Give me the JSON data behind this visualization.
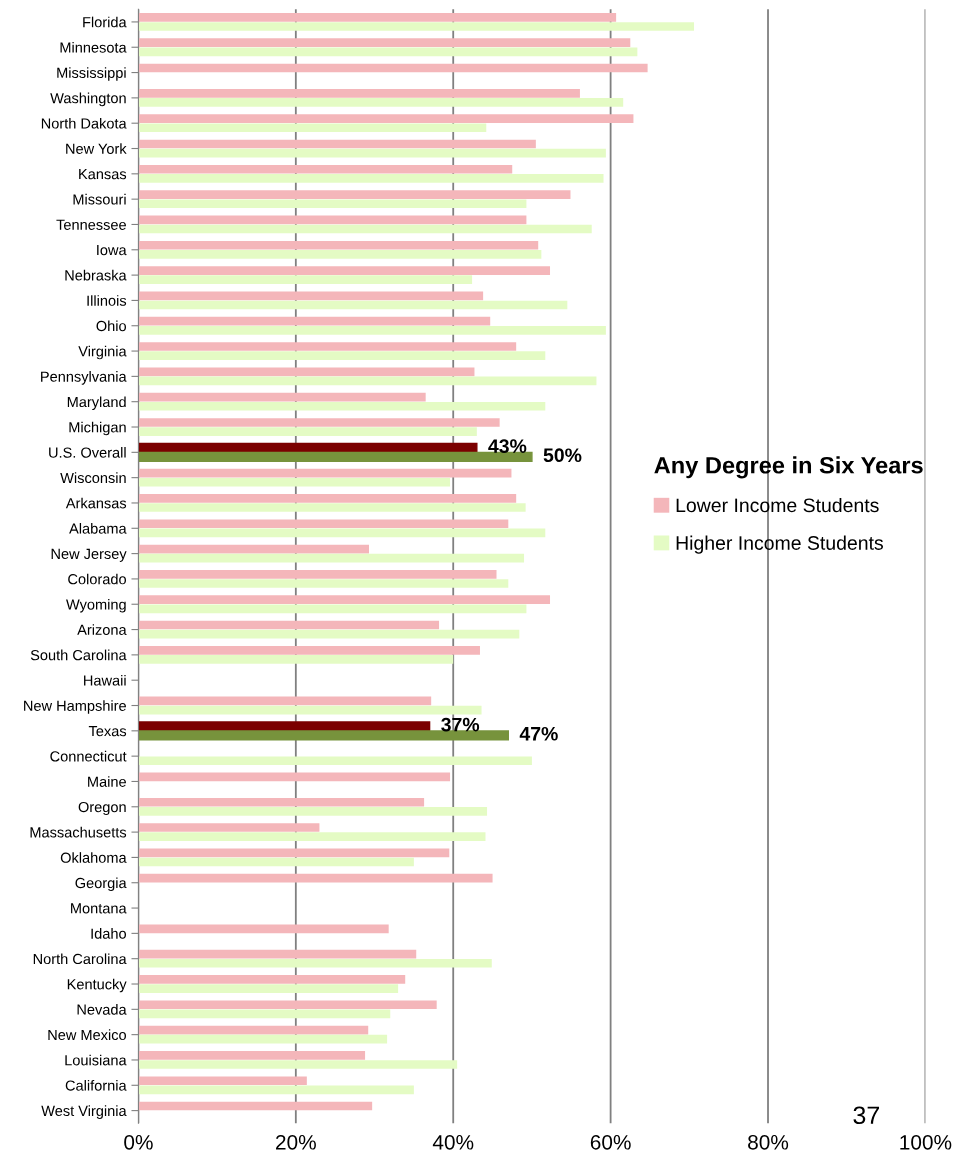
{
  "chart_data": {
    "type": "bar",
    "orientation": "horizontal",
    "legend_title": "Any Degree in Six Years",
    "categories": [
      "Florida",
      "Minnesota",
      "Mississippi",
      "Washington",
      "North Dakota",
      "New York",
      "Kansas",
      "Missouri",
      "Tennessee",
      "Iowa",
      "Nebraska",
      "Illinois",
      "Ohio",
      "Virginia",
      "Pennsylvania",
      "Maryland",
      "Michigan",
      "U.S. Overall",
      "Wisconsin",
      "Arkansas",
      "Alabama",
      "New Jersey",
      "Colorado",
      "Wyoming",
      "Arizona",
      "South Carolina",
      "Hawaii",
      "New Hampshire",
      "Texas",
      "Connecticut",
      "Maine",
      "Oregon",
      "Massachusetts",
      "Oklahoma",
      "Georgia",
      "Montana",
      "Idaho",
      "North Carolina",
      "Kentucky",
      "Nevada",
      "New Mexico",
      "Louisiana",
      "California",
      "West Virginia"
    ],
    "series": [
      {
        "name": "Lower Income Students",
        "color": "#f4b6ba",
        "values": [
          60.7,
          62.5,
          64.7,
          56.1,
          62.9,
          50.5,
          47.5,
          54.9,
          49.3,
          50.8,
          52.3,
          43.8,
          44.7,
          48.0,
          42.7,
          36.5,
          45.9,
          43,
          47.4,
          48.0,
          47.0,
          29.3,
          45.5,
          52.3,
          38.2,
          43.4,
          0,
          37.2,
          37,
          0,
          39.6,
          36.3,
          23.0,
          39.5,
          45.0,
          0,
          31.8,
          35.3,
          33.9,
          37.9,
          29.2,
          28.8,
          21.4,
          29.7
        ],
        "colors": [
          "#f4b6ba",
          "#f4b6ba",
          "#f4b6ba",
          "#f4b6ba",
          "#f4b6ba",
          "#f4b6ba",
          "#f4b6ba",
          "#f4b6ba",
          "#f4b6ba",
          "#f4b6ba",
          "#f4b6ba",
          "#f4b6ba",
          "#f4b6ba",
          "#f4b6ba",
          "#f4b6ba",
          "#f4b6ba",
          "#f4b6ba",
          "#7b0000",
          "#f4b6ba",
          "#f4b6ba",
          "#f4b6ba",
          "#f4b6ba",
          "#f4b6ba",
          "#f4b6ba",
          "#f4b6ba",
          "#f4b6ba",
          "#f4b6ba",
          "#f4b6ba",
          "#7b0000",
          "#f4b6ba",
          "#f4b6ba",
          "#f4b6ba",
          "#f4b6ba",
          "#f4b6ba",
          "#f4b6ba",
          "#f4b6ba",
          "#f4b6ba",
          "#f4b6ba",
          "#f4b6ba",
          "#f4b6ba",
          "#f4b6ba",
          "#f4b6ba",
          "#f4b6ba",
          "#f4b6ba"
        ],
        "value_labels": [
          null,
          null,
          null,
          null,
          null,
          null,
          null,
          null,
          null,
          null,
          null,
          null,
          null,
          null,
          null,
          null,
          null,
          "43%",
          null,
          null,
          null,
          null,
          null,
          null,
          null,
          null,
          null,
          null,
          "37%",
          null,
          null,
          null,
          null,
          null,
          null,
          null,
          null,
          null,
          null,
          null,
          null,
          null,
          null,
          null
        ]
      },
      {
        "name": "Higher Income Students",
        "color": "#e4fbc4",
        "values": [
          70.6,
          63.4,
          0,
          61.6,
          44.2,
          59.4,
          59.1,
          49.3,
          57.6,
          51.2,
          42.4,
          54.5,
          59.4,
          51.7,
          58.2,
          51.7,
          43,
          50,
          39.6,
          49.2,
          51.7,
          49.0,
          47.0,
          49.3,
          48.4,
          40.0,
          0,
          43.6,
          47,
          50.0,
          0,
          44.3,
          44.1,
          35.0,
          0,
          0,
          0,
          44.9,
          33.0,
          32.0,
          31.6,
          40.5,
          35.0,
          0
        ],
        "colors": [
          "#e4fbc4",
          "#e4fbc4",
          "#e4fbc4",
          "#e4fbc4",
          "#e4fbc4",
          "#e4fbc4",
          "#e4fbc4",
          "#e4fbc4",
          "#e4fbc4",
          "#e4fbc4",
          "#e4fbc4",
          "#e4fbc4",
          "#e4fbc4",
          "#e4fbc4",
          "#e4fbc4",
          "#e4fbc4",
          "#e4fbc4",
          "#77933c",
          "#e4fbc4",
          "#e4fbc4",
          "#e4fbc4",
          "#e4fbc4",
          "#e4fbc4",
          "#e4fbc4",
          "#e4fbc4",
          "#e4fbc4",
          "#e4fbc4",
          "#e4fbc4",
          "#77933c",
          "#e4fbc4",
          "#e4fbc4",
          "#e4fbc4",
          "#e4fbc4",
          "#e4fbc4",
          "#e4fbc4",
          "#e4fbc4",
          "#e4fbc4",
          "#e4fbc4",
          "#e4fbc4",
          "#e4fbc4",
          "#e4fbc4",
          "#e4fbc4",
          "#e4fbc4",
          "#e4fbc4"
        ],
        "value_labels": [
          null,
          null,
          null,
          null,
          null,
          null,
          null,
          null,
          null,
          null,
          null,
          null,
          null,
          null,
          null,
          null,
          null,
          "50%",
          null,
          null,
          null,
          null,
          null,
          null,
          null,
          null,
          null,
          null,
          "47%",
          null,
          null,
          null,
          null,
          null,
          null,
          null,
          null,
          null,
          null,
          null,
          null,
          null,
          null,
          null
        ]
      }
    ],
    "xlim": [
      0,
      100
    ],
    "xticks": [
      {
        "value": 0,
        "label": "0%"
      },
      {
        "value": 20,
        "label": "20%"
      },
      {
        "value": 40,
        "label": "40%"
      },
      {
        "value": 60,
        "label": "60%"
      },
      {
        "value": 80,
        "label": "80%"
      },
      {
        "value": 100,
        "label": "100%"
      }
    ],
    "grid": "x",
    "legend": "right",
    "annotations": [
      "37"
    ]
  }
}
